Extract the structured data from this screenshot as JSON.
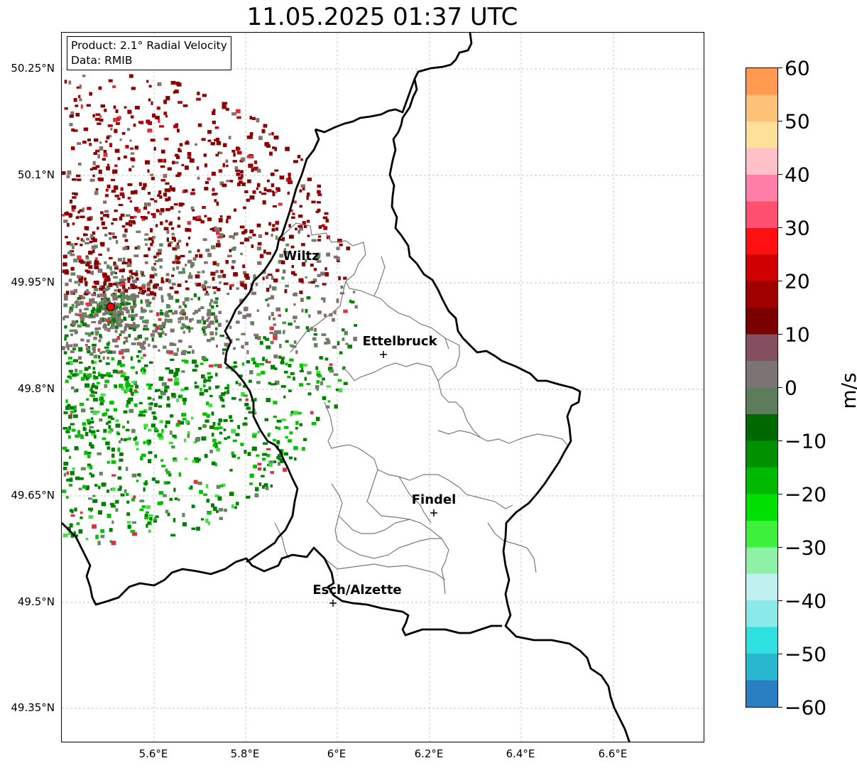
{
  "title": "11.05.2025 01:37 UTC",
  "info": {
    "product": "Product: 2.1° Radial Velocity",
    "data": "Data: RMIB"
  },
  "lat_ticks": [
    "50.25°N",
    "50.1°N",
    "49.95°N",
    "49.8°N",
    "49.65°N",
    "49.5°N",
    "49.35°N"
  ],
  "lon_ticks": [
    "5.6°E",
    "5.8°E",
    "6°E",
    "6.2°E",
    "6.4°E",
    "6.6°E"
  ],
  "cities": [
    {
      "name": "Wiltz"
    },
    {
      "name": "Ettelbruck"
    },
    {
      "name": "Findel"
    },
    {
      "name": "Esch/Alzette"
    }
  ],
  "colorbar": {
    "unit": "m/s",
    "ticks": [
      "60",
      "50",
      "40",
      "30",
      "20",
      "10",
      "0",
      "−10",
      "−20",
      "−30",
      "−40",
      "−50",
      "−60"
    ],
    "min": -60,
    "max": 60,
    "stops": [
      "#2a7fc2",
      "#27b8d0",
      "#2ee0e0",
      "#8aeaea",
      "#bff0f0",
      "#8ff0a8",
      "#3cf03c",
      "#00e000",
      "#00b800",
      "#009000",
      "#006800",
      "#5c7c5c",
      "#7c7474",
      "#845060",
      "#7a0000",
      "#a00000",
      "#d00000",
      "#ff1010",
      "#ff5070",
      "#ff7fa8",
      "#ffc0c8",
      "#ffe098",
      "#ffc078",
      "#ff9a50"
    ]
  },
  "radar": {
    "site_marker_color": "#ff0000",
    "colors": {
      "away_strong": "#8b0000",
      "away_medium": "#b00010",
      "away_light": "#e03040",
      "zero": "#857070",
      "toward_light": "#5f8a5f",
      "toward_medium": "#008000",
      "toward_strong": "#00c000",
      "toward_bright": "#40e040"
    }
  }
}
